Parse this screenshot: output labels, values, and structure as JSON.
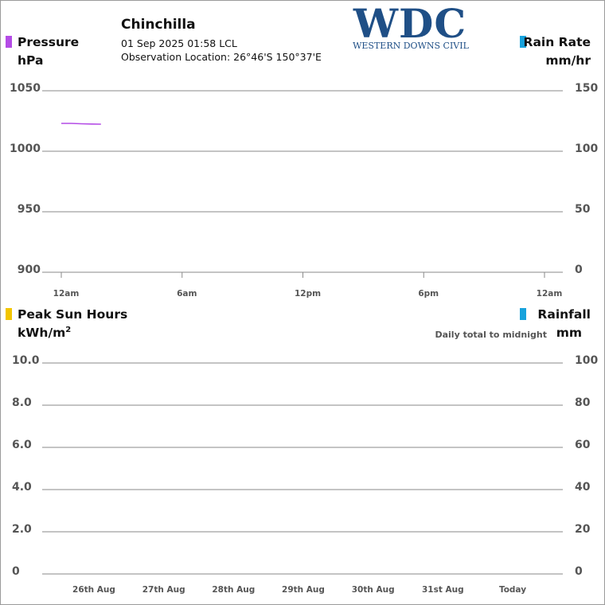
{
  "header": {
    "station": "Chinchilla",
    "datetime": "01 Sep 2025  01:58 LCL",
    "location": "Observation Location: 26°46'S 150°37'E"
  },
  "logo": {
    "main": "WDC",
    "sub": "WESTERN DOWNS CIVIL"
  },
  "colors": {
    "pressure": "#b44ce6",
    "rain": "#17a2dc",
    "sun": "#f2c500",
    "grid": "#8a8a8a"
  },
  "panels": {
    "top": {
      "left_label": "Pressure",
      "left_unit": "hPa",
      "right_label": "Rain Rate",
      "right_unit": "mm/hr"
    },
    "bottom": {
      "left_label": "Peak Sun Hours",
      "left_unit": "kWh/m",
      "left_unit_sup": "2",
      "right_label": "Rainfall",
      "right_unit": "mm",
      "right_note": "Daily total to midnight"
    }
  },
  "chart_data": [
    {
      "type": "line",
      "x_ticks": [
        "12am",
        "6am",
        "12pm",
        "6pm",
        "12am"
      ],
      "xlim_hours": [
        0,
        24
      ],
      "y_left": {
        "label": "Pressure",
        "unit": "hPa",
        "ticks": [
          "1050",
          "1000",
          "950",
          "900"
        ],
        "ylim": [
          900,
          1050
        ]
      },
      "y_right": {
        "label": "Rain Rate",
        "unit": "mm/hr",
        "ticks": [
          "150",
          "100",
          "50",
          "0"
        ],
        "ylim": [
          0,
          150
        ]
      },
      "series": [
        {
          "name": "Pressure",
          "axis": "left",
          "points": [
            [
              0.0,
              1023.0
            ],
            [
              0.5,
              1023.0
            ],
            [
              1.0,
              1022.7
            ],
            [
              1.5,
              1022.5
            ],
            [
              1.97,
              1022.4
            ]
          ]
        }
      ]
    },
    {
      "type": "bar",
      "categories": [
        "26th Aug",
        "27th Aug",
        "28th Aug",
        "29th Aug",
        "30th Aug",
        "31st Aug",
        "Today"
      ],
      "y_left": {
        "label": "Peak Sun Hours",
        "unit": "kWh/m²",
        "ticks": [
          "10.0",
          "8.0",
          "6.0",
          "4.0",
          "2.0",
          "0"
        ],
        "ylim": [
          0,
          10
        ]
      },
      "y_right": {
        "label": "Rainfall",
        "unit": "mm",
        "ticks": [
          "100",
          "80",
          "60",
          "40",
          "20",
          "0"
        ],
        "ylim": [
          0,
          100
        ]
      },
      "series": []
    }
  ]
}
